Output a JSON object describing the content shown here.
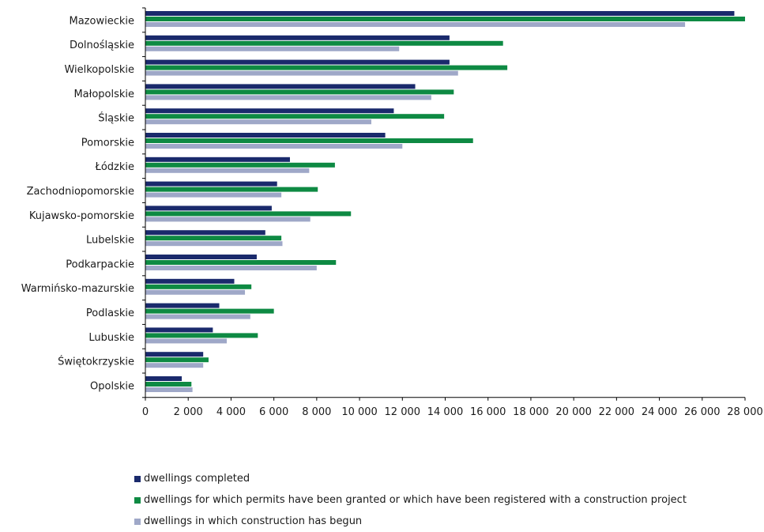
{
  "chart_data": {
    "type": "bar",
    "orientation": "horizontal",
    "categories": [
      "Mazowieckie",
      "Dolnośląskie",
      "Wielkopolskie",
      "Małopolskie",
      "Śląskie",
      "Pomorskie",
      "Łódzkie",
      "Zachodniopomorskie",
      "Kujawsko-pomorskie",
      "Lubelskie",
      "Podkarpackie",
      "Warmińsko-mazurskie",
      "Podlaskie",
      "Lubuskie",
      "Świętokrzyskie",
      "Opolskie"
    ],
    "series": [
      {
        "name": "dwellings completed",
        "color": "#1a2a6c",
        "values": [
          27500,
          14200,
          14200,
          12600,
          11600,
          11200,
          6750,
          6150,
          5900,
          5600,
          5200,
          4150,
          3450,
          3150,
          2700,
          1700
        ]
      },
      {
        "name": "dwellings for which permits have been granted or which have been registered with a construction project",
        "color": "#0e8a43",
        "values": [
          28000,
          16700,
          16900,
          14400,
          13950,
          15300,
          8850,
          8050,
          9600,
          6350,
          8900,
          4950,
          6000,
          5250,
          2950,
          2150
        ]
      },
      {
        "name": "dwellings in which construction has begun",
        "color": "#9fa8c8",
        "values": [
          25200,
          11850,
          14600,
          13350,
          10550,
          12000,
          7650,
          6350,
          7700,
          6400,
          8000,
          4650,
          4900,
          3800,
          2700,
          2200
        ]
      }
    ],
    "xticks": [
      "0",
      "2 000",
      "4 000",
      "6 000",
      "8 000",
      "10 000",
      "12 000",
      "14 000",
      "16 000",
      "18 000",
      "20 000",
      "22 000",
      "24 000",
      "26 000",
      "28 000"
    ],
    "xlim": [
      0,
      28000
    ],
    "legend_position": "bottom",
    "grid": false,
    "title": "",
    "xlabel": "",
    "ylabel": ""
  }
}
